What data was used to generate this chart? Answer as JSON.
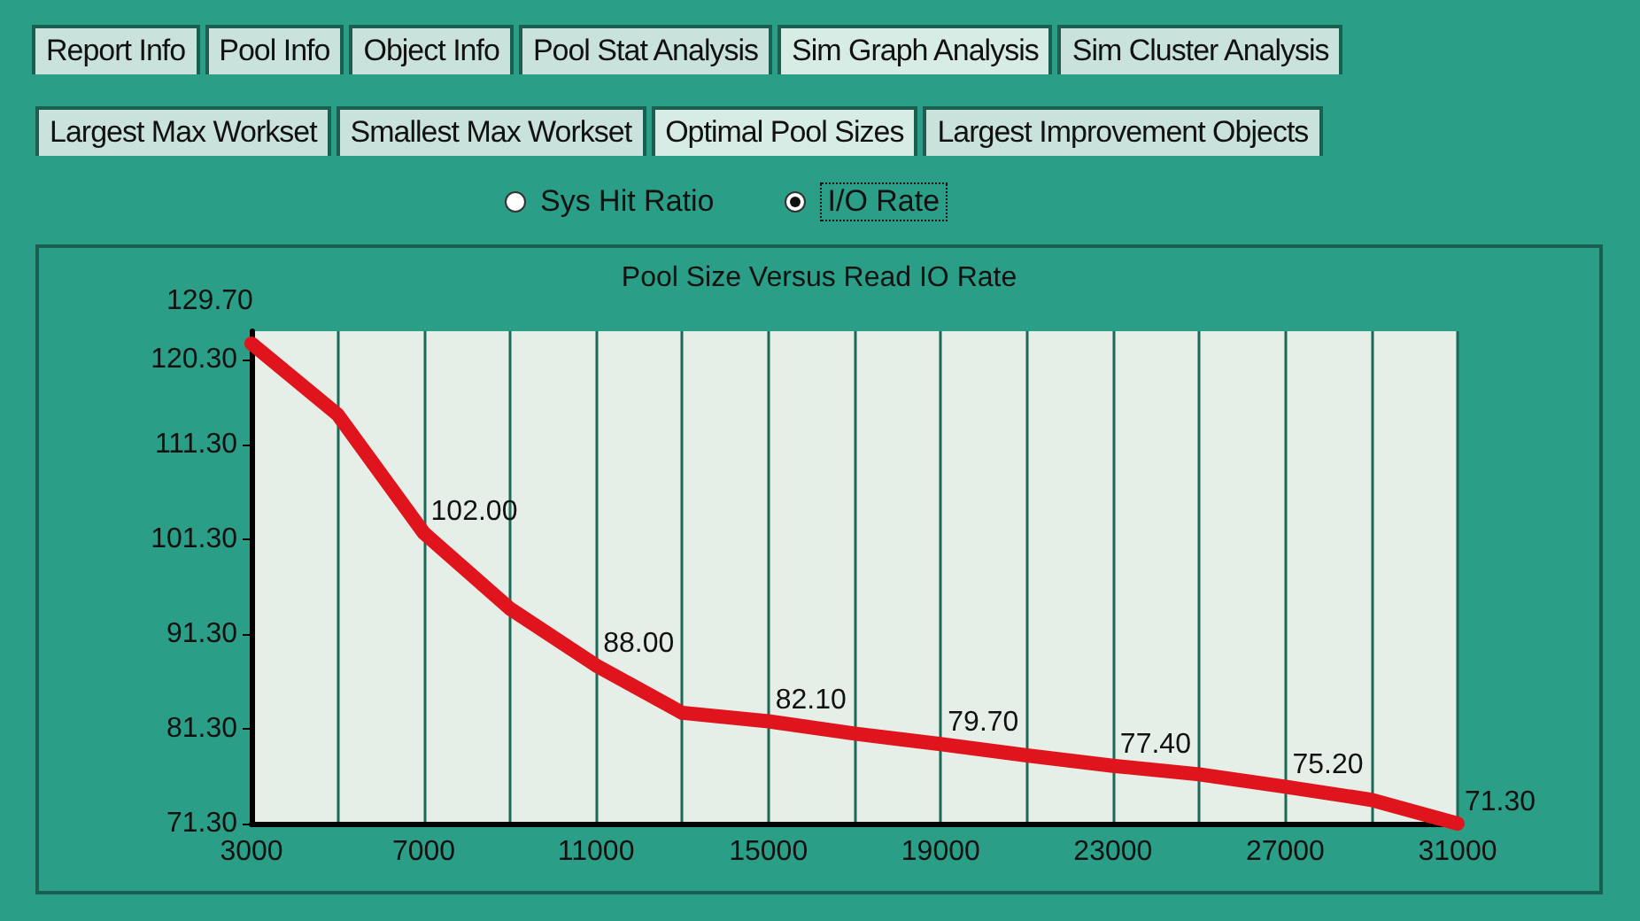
{
  "chart_data": {
    "type": "line",
    "title": "Pool Size Versus Read IO Rate",
    "x": [
      3000,
      5000,
      7000,
      9000,
      11000,
      13000,
      15000,
      17000,
      19000,
      21000,
      23000,
      25000,
      27000,
      29000,
      31000
    ],
    "series": [
      {
        "color": "#e0141c",
        "values": [
          122,
          114.5,
          102,
          94,
          88,
          83,
          82.1,
          80.8,
          79.7,
          78.5,
          77.4,
          76.5,
          75.2,
          73.8,
          71.3
        ],
        "value_labels": [
          null,
          null,
          "102.00",
          null,
          "88.00",
          null,
          "82.10",
          null,
          "79.70",
          null,
          "77.40",
          null,
          "75.20",
          null,
          "71.30"
        ]
      }
    ],
    "xlim": [
      3000,
      31000
    ],
    "xticks": [
      3000,
      {
        "value": 5000,
        "label": null
      },
      7000,
      {
        "value": 9000,
        "label": null
      },
      11000,
      {
        "value": 13000,
        "label": null
      },
      15000,
      {
        "value": 17000,
        "label": null
      },
      19000,
      {
        "value": 21000,
        "label": null
      },
      23000,
      {
        "value": 25000,
        "label": null
      },
      27000,
      {
        "value": 29000,
        "label": null
      },
      31000
    ],
    "ylim": [
      71.3,
      123.3
    ],
    "yticks": [
      {
        "value": 71.3,
        "label": "71.30"
      },
      {
        "value": 81.3,
        "label": "81.30"
      },
      {
        "value": 91.3,
        "label": "91.30"
      },
      {
        "value": 101.3,
        "label": "101.30"
      },
      {
        "value": 111.3,
        "label": "111.30"
      },
      {
        "value": 120.3,
        "label": "120.30"
      }
    ],
    "grid": "x",
    "marker": "none",
    "line_style": "solid",
    "annotations": [
      "Report Info",
      "Pool Info",
      "Object Info",
      "Pool Stat Analysis",
      "Sim Graph Analysis",
      "Sim Cluster Analysis",
      "Largest Max Workset",
      "Smallest Max Workset",
      "Optimal Pool Sizes",
      "Largest Improvement Objects",
      "Sys Hit Ratio",
      "I/O Rate",
      "129.70"
    ]
  }
}
